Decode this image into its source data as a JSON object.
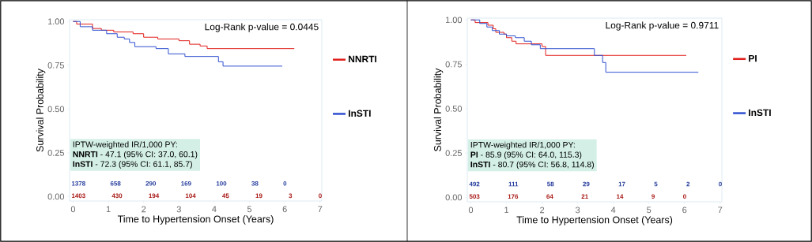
{
  "chart_data": [
    {
      "type": "step",
      "xlabel": "Time to Hypertension Onset (Years)",
      "ylabel": "Survival Probability",
      "xlim": [
        -0.1,
        7.05
      ],
      "ylim": [
        -0.025,
        1.01
      ],
      "xticks": [
        0,
        1,
        2,
        3,
        4,
        5,
        6,
        7
      ],
      "yticks": [
        {
          "value": 0,
          "label": "0.00"
        },
        {
          "value": 0.25,
          "label": "0.25"
        },
        {
          "value": 0.5,
          "label": "0.50"
        },
        {
          "value": 0.75,
          "label": "0.75"
        },
        {
          "value": 1,
          "label": "1.00"
        }
      ],
      "legend": "right",
      "grid": false,
      "series": [
        {
          "name": "NNRTI",
          "color": "#e0201c",
          "x": [
            0,
            0.1,
            0.55,
            0.8,
            1.15,
            1.7,
            2.0,
            2.4,
            3.0,
            3.3,
            3.6,
            3.8,
            6.27
          ],
          "values": [
            1.0,
            0.985,
            0.96,
            0.95,
            0.94,
            0.93,
            0.91,
            0.9,
            0.89,
            0.87,
            0.86,
            0.845,
            0.845
          ]
        },
        {
          "name": "InSTI",
          "color": "#3050d0",
          "x": [
            0,
            0.2,
            0.55,
            0.95,
            1.25,
            1.45,
            1.6,
            1.75,
            2.35,
            2.7,
            3.17,
            4.12,
            4.25,
            5.93
          ],
          "values": [
            1.0,
            0.97,
            0.95,
            0.93,
            0.91,
            0.9,
            0.88,
            0.856,
            0.845,
            0.815,
            0.8,
            0.77,
            0.745,
            0.745
          ]
        }
      ],
      "annotations": [
        "Log-Rank p-value = 0.0445",
        "IPTW-weighted IR/1,000 PY:",
        "**NNRTI** - 47.1 (95% CI: 37.0, 60.1)",
        "**InSTI** - 72.3 (95% CI: 61.1, 85.7)",
        "1378 658 290 169 100 38 0",
        "1403 430 194 104 45 19 3 0"
      ]
    },
    {
      "type": "step",
      "xlabel": "Time to Hypertension Onset (Years)",
      "ylabel": "Survival Probability",
      "xlim": [
        -0.1,
        7.05
      ],
      "ylim": [
        -0.025,
        1.01
      ],
      "xticks": [
        0,
        1,
        2,
        3,
        4,
        5,
        6,
        7
      ],
      "yticks": [
        {
          "value": 0,
          "label": "0.00"
        },
        {
          "value": 0.25,
          "label": "0.25"
        },
        {
          "value": 0.5,
          "label": "0.50"
        },
        {
          "value": 0.75,
          "label": "0.75"
        },
        {
          "value": 1,
          "label": "1.00"
        }
      ],
      "legend": "right",
      "grid": false,
      "series": [
        {
          "name": "PI",
          "color": "#e0201c",
          "x": [
            0,
            0.12,
            0.48,
            0.63,
            0.7,
            0.93,
            1.0,
            1.15,
            1.27,
            2.0,
            2.1,
            6.05
          ],
          "values": [
            1.0,
            0.985,
            0.97,
            0.95,
            0.93,
            0.92,
            0.9,
            0.88,
            0.865,
            0.85,
            0.8,
            0.8
          ]
        },
        {
          "name": "InSTI",
          "color": "#3050d0",
          "x": [
            0,
            0.25,
            0.45,
            0.6,
            0.8,
            1.0,
            1.25,
            1.5,
            1.7,
            1.95,
            3.47,
            3.7,
            3.79,
            6.39
          ],
          "values": [
            1.0,
            0.98,
            0.96,
            0.94,
            0.92,
            0.91,
            0.9,
            0.88,
            0.86,
            0.838,
            0.8,
            0.76,
            0.705,
            0.705
          ]
        }
      ],
      "annotations": [
        "Log-Rank p-value = 0.9711",
        "IPTW-weighted IR/1,000 PY:",
        "**PI** - 85.9 (95% CI: 64.0, 115.3)",
        "**InSTI** - 80.7 (95% CI: 56.8, 114.8)",
        "492 111 58 29 17 5 2 0",
        "503 176 64 21 14 9 0"
      ]
    }
  ]
}
